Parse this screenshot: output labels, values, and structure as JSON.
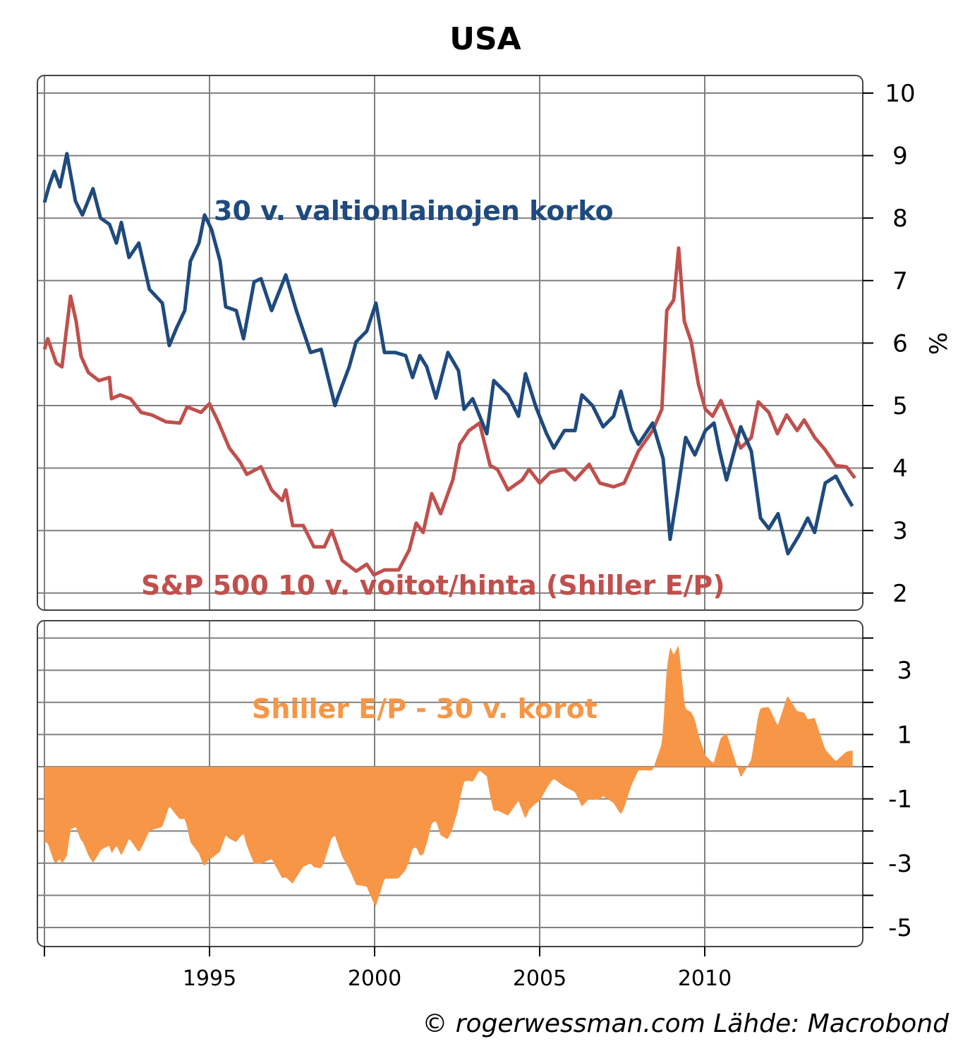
{
  "chart_data": [
    {
      "type": "line",
      "title": "USA",
      "ylabel": "%",
      "ylim": [
        2,
        10
      ],
      "yticks": [
        "10",
        "9",
        "8",
        "7",
        "6",
        "5",
        "4",
        "3",
        "2"
      ],
      "xlim": [
        1990.0,
        2014.7
      ],
      "grid": true,
      "series": [
        {
          "name": "30 v. valtionlainojen korko",
          "color": "#1f4a7e",
          "x": [
            1990.0,
            1990.15,
            1990.3,
            1990.47,
            1990.68,
            1990.94,
            1991.15,
            1991.47,
            1991.7,
            1991.97,
            1992.18,
            1992.33,
            1992.56,
            1992.86,
            1993.18,
            1993.57,
            1993.78,
            1994.0,
            1994.25,
            1994.42,
            1994.68,
            1994.85,
            1995.06,
            1995.32,
            1995.49,
            1995.81,
            1996.03,
            1996.35,
            1996.56,
            1996.88,
            1997.31,
            1997.63,
            1998.06,
            1998.38,
            1998.8,
            1998.91,
            1999.23,
            1999.44,
            1999.76,
            2000.04,
            2000.3,
            2000.62,
            2000.94,
            2001.15,
            2001.37,
            2001.58,
            2001.86,
            2002.22,
            2002.54,
            2002.71,
            2002.97,
            2003.4,
            2003.61,
            2004.04,
            2004.36,
            2004.57,
            2004.89,
            2005.21,
            2005.43,
            2005.75,
            2006.07,
            2006.28,
            2006.6,
            2006.92,
            2007.24,
            2007.46,
            2007.78,
            2007.99,
            2008.42,
            2008.74,
            2008.95,
            2009.17,
            2009.42,
            2009.7,
            2010.02,
            2010.28,
            2010.45,
            2010.66,
            2011.09,
            2011.41,
            2011.69,
            2011.94,
            2012.22,
            2012.52,
            2012.84,
            2013.12,
            2013.33,
            2013.65,
            2013.97,
            2014.25,
            2014.47
          ],
          "y": [
            8.25,
            8.53,
            8.75,
            8.5,
            9.03,
            8.27,
            8.05,
            8.47,
            8.0,
            7.9,
            7.6,
            7.93,
            7.37,
            7.6,
            6.86,
            6.64,
            5.96,
            6.24,
            6.52,
            7.31,
            7.6,
            8.05,
            7.82,
            7.31,
            6.58,
            6.52,
            6.07,
            6.98,
            7.03,
            6.52,
            7.09,
            6.52,
            5.85,
            5.9,
            5.0,
            5.17,
            5.62,
            6.02,
            6.19,
            6.64,
            5.85,
            5.85,
            5.8,
            5.45,
            5.8,
            5.62,
            5.12,
            5.85,
            5.56,
            4.94,
            5.11,
            4.55,
            5.4,
            5.17,
            4.83,
            5.51,
            4.97,
            4.55,
            4.32,
            4.6,
            4.6,
            5.17,
            5.0,
            4.66,
            4.83,
            5.23,
            4.6,
            4.38,
            4.72,
            4.15,
            2.86,
            3.59,
            4.49,
            4.21,
            4.6,
            4.72,
            4.27,
            3.81,
            4.66,
            4.27,
            3.2,
            3.03,
            3.27,
            2.63,
            2.91,
            3.2,
            2.97,
            3.76,
            3.87,
            3.59,
            3.39
          ]
        },
        {
          "name": "S&P 500 10 v. voitot/hinta (Shiller E/P)",
          "color": "#c0504d",
          "x": [
            1990.0,
            1990.1,
            1990.36,
            1990.53,
            1990.79,
            1990.96,
            1991.11,
            1991.33,
            1991.65,
            1991.97,
            1992.03,
            1992.29,
            1992.61,
            1992.93,
            1993.25,
            1993.68,
            1994.1,
            1994.32,
            1994.74,
            1995.0,
            1995.28,
            1995.6,
            1995.92,
            1996.13,
            1996.56,
            1996.88,
            1997.2,
            1997.31,
            1997.52,
            1997.84,
            1998.16,
            1998.48,
            1998.7,
            1999.02,
            1999.44,
            1999.76,
            1999.98,
            2000.3,
            2000.73,
            2001.05,
            2001.26,
            2001.47,
            2001.73,
            2002.0,
            2002.37,
            2002.58,
            2002.86,
            2003.18,
            2003.5,
            2003.72,
            2004.04,
            2004.47,
            2004.68,
            2005.0,
            2005.32,
            2005.75,
            2006.07,
            2006.5,
            2006.82,
            2007.24,
            2007.56,
            2007.99,
            2008.42,
            2008.7,
            2008.85,
            2009.06,
            2009.21,
            2009.38,
            2009.59,
            2009.81,
            2010.02,
            2010.24,
            2010.49,
            2010.77,
            2011.09,
            2011.41,
            2011.62,
            2011.94,
            2012.2,
            2012.48,
            2012.8,
            2013.01,
            2013.33,
            2013.65,
            2013.97,
            2014.29,
            2014.55
          ],
          "y": [
            5.9,
            6.07,
            5.68,
            5.62,
            6.75,
            6.35,
            5.79,
            5.53,
            5.4,
            5.45,
            5.11,
            5.17,
            5.11,
            4.89,
            4.85,
            4.74,
            4.72,
            4.98,
            4.89,
            5.03,
            4.72,
            4.32,
            4.1,
            3.9,
            4.02,
            3.65,
            3.48,
            3.65,
            3.08,
            3.08,
            2.74,
            2.74,
            3.0,
            2.52,
            2.35,
            2.46,
            2.29,
            2.37,
            2.37,
            2.69,
            3.12,
            2.97,
            3.59,
            3.27,
            3.81,
            4.38,
            4.6,
            4.72,
            4.04,
            3.98,
            3.65,
            3.81,
            3.98,
            3.76,
            3.93,
            3.98,
            3.81,
            4.06,
            3.76,
            3.7,
            3.76,
            4.27,
            4.6,
            4.94,
            6.52,
            6.69,
            7.52,
            6.35,
            6.02,
            5.34,
            4.94,
            4.83,
            5.08,
            4.72,
            4.32,
            4.49,
            5.06,
            4.89,
            4.55,
            4.85,
            4.6,
            4.77,
            4.49,
            4.29,
            4.04,
            4.02,
            3.84
          ]
        }
      ],
      "annotations": {
        "yield_label": "30 v. valtionlainojen korko",
        "ep_label": "S&P 500 10 v. voitot/hinta (Shiller E/P)"
      }
    },
    {
      "type": "area",
      "name": "Shiller E/P - 30 v. korot",
      "label": "Shiller E/P - 30 v. korot",
      "color": "#f79646",
      "derived_from": "S&P 500 10 v. voitot/hinta (Shiller E/P) minus 30 v. valtionlainojen korko",
      "ylim": [
        -5.4,
        4.0
      ],
      "yticks": [
        "3",
        "1",
        "-1",
        "-3",
        "-5"
      ],
      "xlabel_ticks": [
        "1995",
        "2000",
        "2005",
        "2010"
      ],
      "grid": true
    }
  ],
  "title": "USA",
  "footer": "© rogerwessman.com Lähde: Macrobond"
}
